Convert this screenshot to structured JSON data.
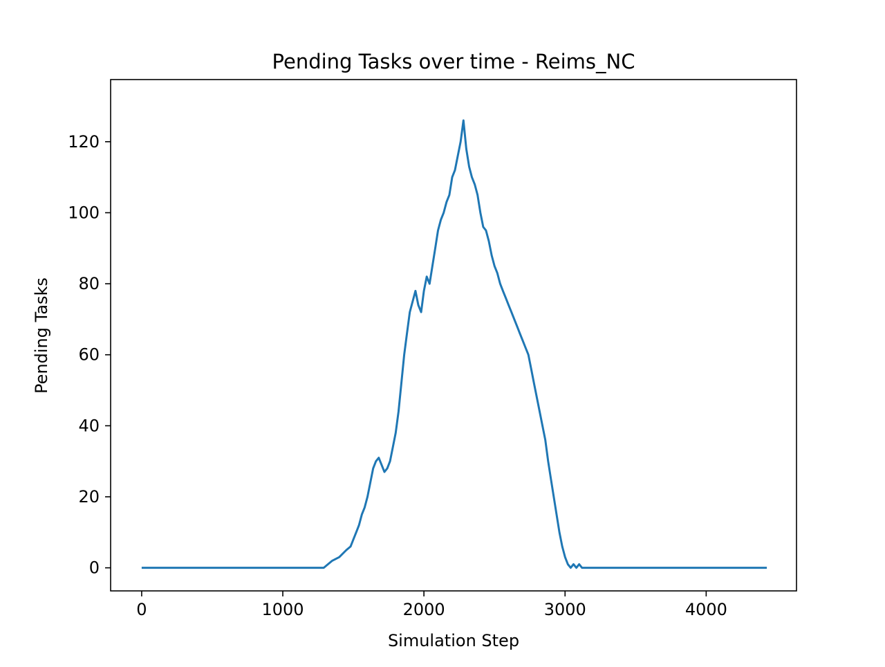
{
  "chart_data": {
    "type": "line",
    "title": "Pending Tasks over time - Reims_NC",
    "xlabel": "Simulation Step",
    "ylabel": "Pending Tasks",
    "xlim": [
      -220,
      4640
    ],
    "ylim": [
      -6.5,
      137.5
    ],
    "xticks": [
      0,
      1000,
      2000,
      3000,
      4000
    ],
    "yticks": [
      0,
      20,
      40,
      60,
      80,
      100,
      120
    ],
    "grid": false,
    "legend": "none",
    "series": [
      {
        "color": "#1f77b4",
        "x": [
          0,
          1290,
          1350,
          1400,
          1450,
          1480,
          1500,
          1520,
          1540,
          1560,
          1580,
          1600,
          1620,
          1640,
          1660,
          1680,
          1700,
          1720,
          1740,
          1760,
          1780,
          1800,
          1820,
          1840,
          1860,
          1880,
          1900,
          1920,
          1940,
          1960,
          1980,
          2000,
          2020,
          2040,
          2060,
          2080,
          2100,
          2120,
          2140,
          2160,
          2180,
          2200,
          2220,
          2240,
          2260,
          2280,
          2300,
          2320,
          2340,
          2360,
          2380,
          2400,
          2420,
          2440,
          2460,
          2480,
          2500,
          2520,
          2540,
          2560,
          2580,
          2600,
          2620,
          2640,
          2660,
          2680,
          2700,
          2720,
          2740,
          2760,
          2780,
          2800,
          2820,
          2840,
          2860,
          2880,
          2900,
          2920,
          2940,
          2960,
          2980,
          3000,
          3020,
          3040,
          3060,
          3080,
          3100,
          3120,
          3140,
          3200,
          4430
        ],
        "y": [
          0,
          0,
          2,
          3,
          5,
          6,
          8,
          10,
          12,
          15,
          17,
          20,
          24,
          28,
          30,
          31,
          29,
          27,
          28,
          30,
          34,
          38,
          44,
          52,
          60,
          66,
          72,
          75,
          78,
          74,
          72,
          78,
          82,
          80,
          85,
          90,
          95,
          98,
          100,
          103,
          105,
          110,
          112,
          116,
          120,
          126,
          118,
          113,
          110,
          108,
          105,
          100,
          96,
          95,
          92,
          88,
          85,
          83,
          80,
          78,
          76,
          74,
          72,
          70,
          68,
          66,
          64,
          62,
          60,
          56,
          52,
          48,
          44,
          40,
          36,
          30,
          25,
          20,
          15,
          10,
          6,
          3,
          1,
          0,
          1,
          0,
          1,
          0,
          0,
          0,
          0
        ]
      }
    ]
  }
}
